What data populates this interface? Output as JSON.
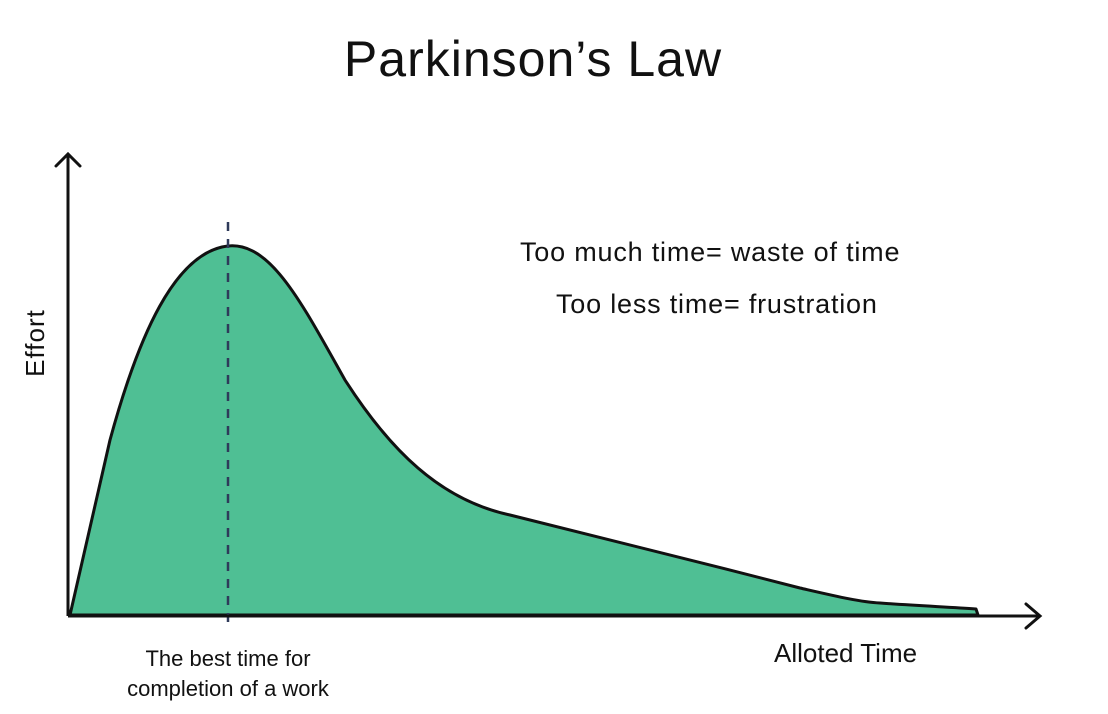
{
  "diagram": {
    "title": "Parkinson’s Law",
    "notes": [
      "Too much time= waste of time",
      "Too less time= frustration"
    ],
    "y_axis_label": "Effort",
    "x_axis_label": "Alloted Time",
    "marker_label_lines": [
      "The best time for",
      "completion of a work"
    ]
  },
  "colors": {
    "curve_fill": "#4fbf94",
    "curve_stroke": "#111111",
    "axis": "#111111",
    "marker_line": "#2f3a5a",
    "text": "#111111"
  }
}
